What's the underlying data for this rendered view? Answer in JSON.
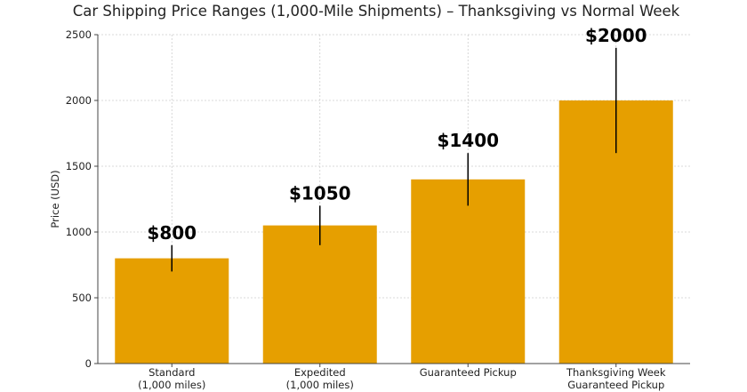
{
  "chart_data": {
    "type": "bar",
    "title": "Car Shipping Price Ranges (1,000-Mile Shipments) – Thanksgiving vs Normal Week",
    "xlabel": "",
    "ylabel": "Price (USD)",
    "ylim": [
      0,
      2500
    ],
    "yticks": [
      0,
      500,
      1000,
      1500,
      2000,
      2500
    ],
    "grid": true,
    "categories": [
      [
        "Standard",
        "(1,000 miles)"
      ],
      [
        "Expedited",
        "(1,000 miles)"
      ],
      [
        "Guaranteed Pickup"
      ],
      [
        "Thanksgiving Week",
        "Guaranteed Pickup"
      ]
    ],
    "values": [
      800,
      1050,
      1400,
      2000
    ],
    "error_ranges": [
      [
        700,
        900
      ],
      [
        900,
        1200
      ],
      [
        1200,
        1600
      ],
      [
        1600,
        2400
      ]
    ],
    "data_labels": [
      "$800",
      "$1050",
      "$1400",
      "$2000"
    ],
    "bar_color": "#E69F00"
  }
}
